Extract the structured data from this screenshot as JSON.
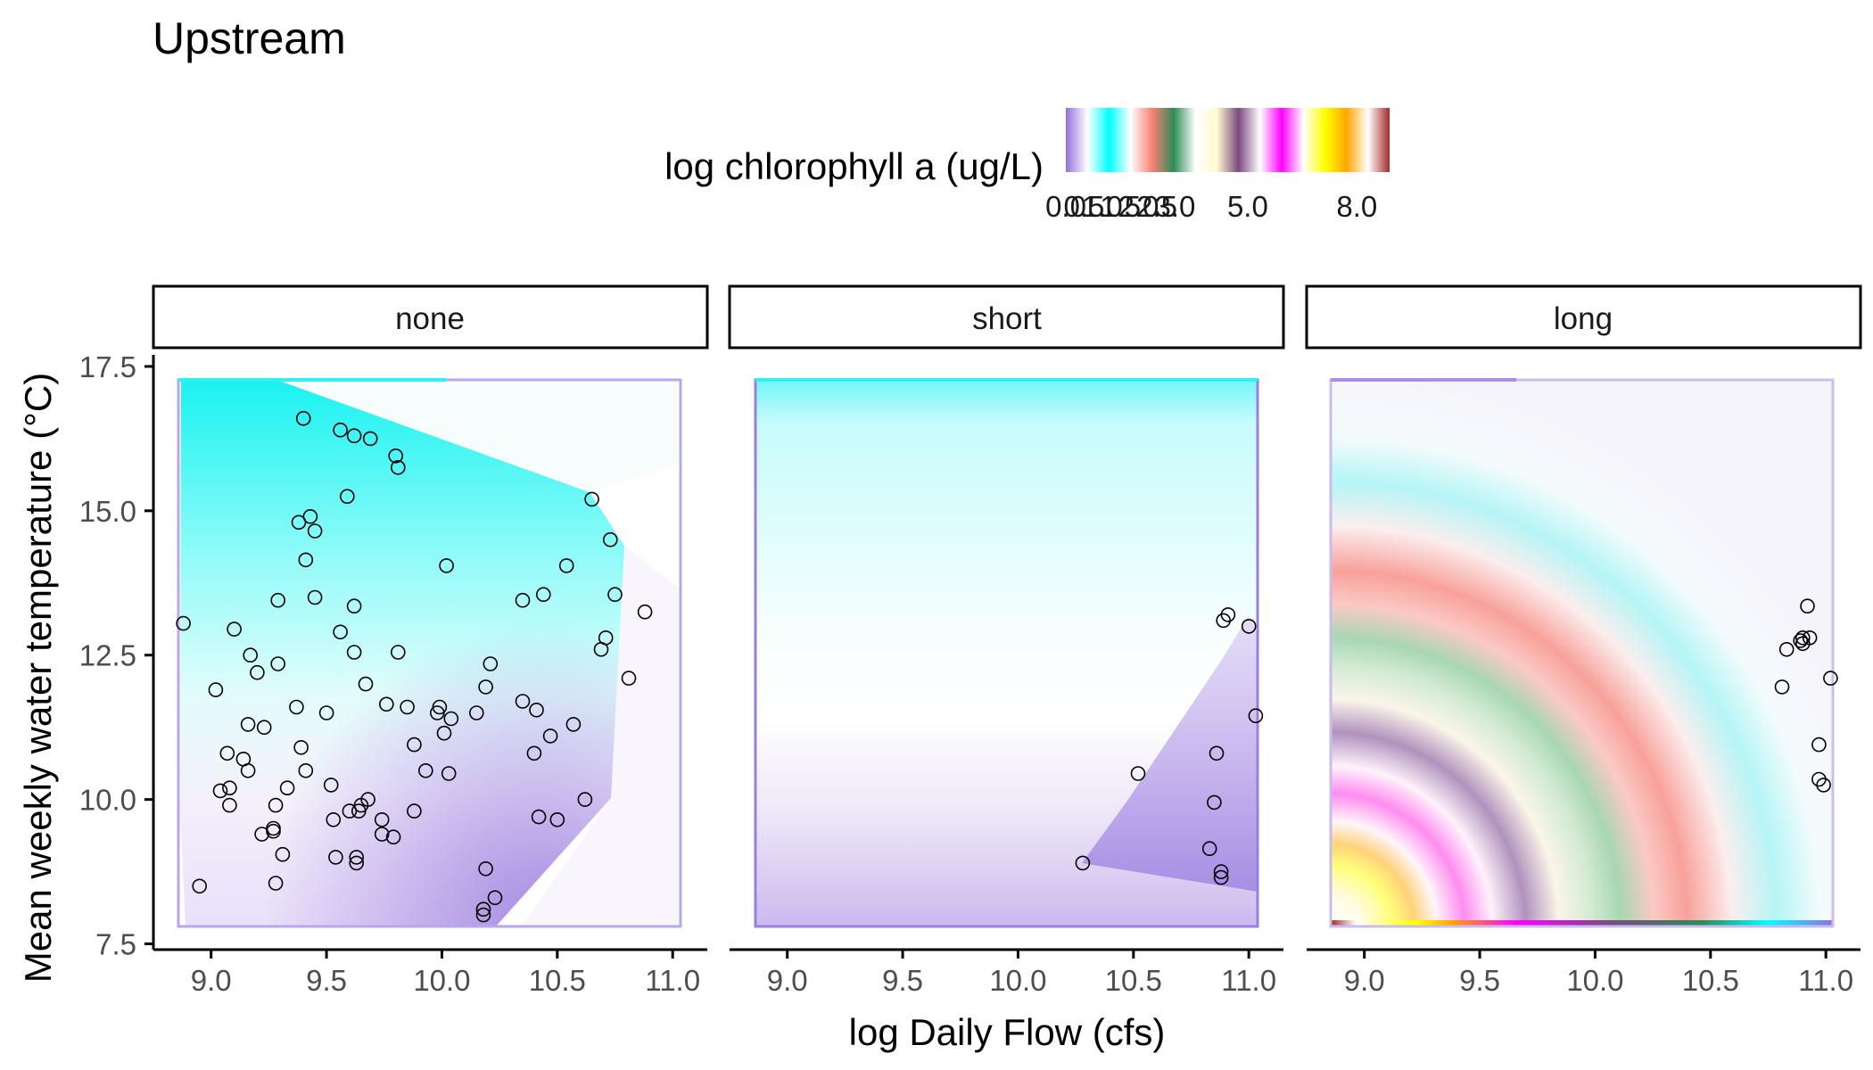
{
  "chart_data": {
    "type": "scatter",
    "title": "Upstream",
    "xlabel": "log Daily Flow (cfs)",
    "ylabel": "Mean weekly water temperature (°C)",
    "xlim": [
      8.75,
      11.15
    ],
    "ylim": [
      7.4,
      17.7
    ],
    "x_ticks": [
      9.0,
      9.5,
      10.0,
      10.5,
      11.0
    ],
    "x_tick_labels": [
      "9.0",
      "9.5",
      "10.0",
      "10.5",
      "11.0"
    ],
    "y_ticks": [
      7.5,
      10.0,
      12.5,
      15.0,
      17.5
    ],
    "y_tick_labels": [
      "7.5",
      "10.0",
      "12.5",
      "15.0",
      "17.5"
    ],
    "grid": false,
    "legend": {
      "title": "log chlorophyll a (ug/L)",
      "placement": "top",
      "tick_labels": [
        "0.0",
        "0.5",
        "1.0",
        "1.5",
        "2.0",
        "2.5",
        "3.0",
        "5.0",
        "8.0"
      ],
      "colors": [
        "#9370db",
        "#ffffff",
        "#00ffff",
        "#ffffff",
        "#fa8072",
        "#2e8b57",
        "#ffffff",
        "#fffacd",
        "#7b4a82",
        "#ffffff",
        "#ff00ff",
        "#ffffff",
        "#ffff00",
        "#ffa500",
        "#ffffff",
        "#a52a2a"
      ]
    },
    "panels": [
      {
        "name": "none",
        "points": [
          [
            8.88,
            13.05
          ],
          [
            8.95,
            8.5
          ],
          [
            9.02,
            11.9
          ],
          [
            9.04,
            10.15
          ],
          [
            9.07,
            10.8
          ],
          [
            9.08,
            10.2
          ],
          [
            9.08,
            9.9
          ],
          [
            9.1,
            12.95
          ],
          [
            9.14,
            10.7
          ],
          [
            9.16,
            11.3
          ],
          [
            9.16,
            10.5
          ],
          [
            9.17,
            12.5
          ],
          [
            9.2,
            12.2
          ],
          [
            9.22,
            9.4
          ],
          [
            9.23,
            11.25
          ],
          [
            9.27,
            9.5
          ],
          [
            9.27,
            9.45
          ],
          [
            9.28,
            9.9
          ],
          [
            9.28,
            8.55
          ],
          [
            9.29,
            12.35
          ],
          [
            9.29,
            13.45
          ],
          [
            9.31,
            9.05
          ],
          [
            9.33,
            10.2
          ],
          [
            9.37,
            11.6
          ],
          [
            9.38,
            14.8
          ],
          [
            9.39,
            10.9
          ],
          [
            9.4,
            16.6
          ],
          [
            9.41,
            10.5
          ],
          [
            9.41,
            14.15
          ],
          [
            9.43,
            14.9
          ],
          [
            9.45,
            13.5
          ],
          [
            9.45,
            14.65
          ],
          [
            9.5,
            11.5
          ],
          [
            9.52,
            10.25
          ],
          [
            9.53,
            9.65
          ],
          [
            9.54,
            9.0
          ],
          [
            9.56,
            12.9
          ],
          [
            9.56,
            16.4
          ],
          [
            9.59,
            15.25
          ],
          [
            9.6,
            9.8
          ],
          [
            9.62,
            12.55
          ],
          [
            9.62,
            13.35
          ],
          [
            9.62,
            16.3
          ],
          [
            9.63,
            9.0
          ],
          [
            9.63,
            8.9
          ],
          [
            9.64,
            9.8
          ],
          [
            9.65,
            9.9
          ],
          [
            9.67,
            12.0
          ],
          [
            9.68,
            10.0
          ],
          [
            9.69,
            16.25
          ],
          [
            9.74,
            9.65
          ],
          [
            9.74,
            9.4
          ],
          [
            9.76,
            11.65
          ],
          [
            9.79,
            9.35
          ],
          [
            9.8,
            15.95
          ],
          [
            9.81,
            15.75
          ],
          [
            9.81,
            12.55
          ],
          [
            9.85,
            11.6
          ],
          [
            9.88,
            10.95
          ],
          [
            9.88,
            9.8
          ],
          [
            9.93,
            10.5
          ],
          [
            9.98,
            11.5
          ],
          [
            9.99,
            11.6
          ],
          [
            10.01,
            11.15
          ],
          [
            10.02,
            14.05
          ],
          [
            10.03,
            10.45
          ],
          [
            10.04,
            11.4
          ],
          [
            10.15,
            11.5
          ],
          [
            10.18,
            8.0
          ],
          [
            10.18,
            8.1
          ],
          [
            10.19,
            8.8
          ],
          [
            10.19,
            11.95
          ],
          [
            10.21,
            12.35
          ],
          [
            10.23,
            8.3
          ],
          [
            10.35,
            11.7
          ],
          [
            10.35,
            13.45
          ],
          [
            10.4,
            10.8
          ],
          [
            10.41,
            11.55
          ],
          [
            10.42,
            9.7
          ],
          [
            10.44,
            13.55
          ],
          [
            10.47,
            11.1
          ],
          [
            10.5,
            9.65
          ],
          [
            10.54,
            14.05
          ],
          [
            10.57,
            11.3
          ],
          [
            10.62,
            10.0
          ],
          [
            10.65,
            15.2
          ],
          [
            10.69,
            12.6
          ],
          [
            10.71,
            12.8
          ],
          [
            10.73,
            14.5
          ],
          [
            10.75,
            13.55
          ],
          [
            10.81,
            12.1
          ],
          [
            10.88,
            13.25
          ]
        ]
      },
      {
        "name": "short",
        "points": [
          [
            10.28,
            8.9
          ],
          [
            10.52,
            10.45
          ],
          [
            10.83,
            9.15
          ],
          [
            10.85,
            9.95
          ],
          [
            10.86,
            10.8
          ],
          [
            10.88,
            8.75
          ],
          [
            10.88,
            8.65
          ],
          [
            10.89,
            13.1
          ],
          [
            10.91,
            13.2
          ],
          [
            11.0,
            13.0
          ],
          [
            11.03,
            11.45
          ]
        ]
      },
      {
        "name": "long",
        "points": [
          [
            10.81,
            11.95
          ],
          [
            10.83,
            12.6
          ],
          [
            10.89,
            12.75
          ],
          [
            10.9,
            12.7
          ],
          [
            10.9,
            12.8
          ],
          [
            10.92,
            13.35
          ],
          [
            10.93,
            12.8
          ],
          [
            10.97,
            10.35
          ],
          [
            10.97,
            10.95
          ],
          [
            10.99,
            10.25
          ],
          [
            11.02,
            12.1
          ]
        ]
      }
    ]
  }
}
